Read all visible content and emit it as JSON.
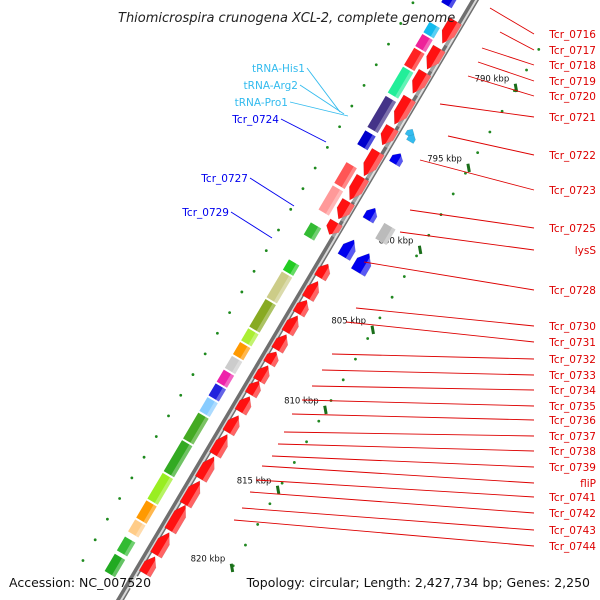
{
  "title": "Thiomicrospira crunogena XCL-2, complete genome",
  "footer": {
    "accession": "Accession: NC_007520",
    "topology": "Topology: circular; Length: 2,427,734 bp; Genes: 2,250"
  },
  "scale_labels": [
    "790 kbp",
    "795 kbp",
    "800 kbp",
    "805 kbp",
    "810 kbp",
    "815 kbp",
    "820 kbp"
  ],
  "colors": {
    "forward_gene": "#ff0000",
    "trna": "#33bbee",
    "highlight_left": "#0000ee",
    "right_label": "#dd0000",
    "backbone": "#888888"
  },
  "left_labels": [
    {
      "name": "tRNA-His1",
      "type": "trna"
    },
    {
      "name": "tRNA-Arg2",
      "type": "trna"
    },
    {
      "name": "tRNA-Pro1",
      "type": "trna"
    },
    {
      "name": "Tcr_0724",
      "type": "gene"
    },
    {
      "name": "Tcr_0727",
      "type": "gene"
    },
    {
      "name": "Tcr_0729",
      "type": "gene"
    }
  ],
  "right_labels": [
    "Tcr_0716",
    "Tcr_0717",
    "Tcr_0718",
    "Tcr_0719",
    "Tcr_0720",
    "Tcr_0721",
    "Tcr_0722",
    "Tcr_0723",
    "Tcr_0725",
    "lysS",
    "Tcr_0728",
    "Tcr_0730",
    "Tcr_0731",
    "Tcr_0732",
    "Tcr_0733",
    "Tcr_0734",
    "Tcr_0735",
    "Tcr_0736",
    "Tcr_0737",
    "Tcr_0738",
    "Tcr_0739",
    "fliP",
    "Tcr_0741",
    "Tcr_0742",
    "Tcr_0743",
    "Tcr_0744"
  ]
}
